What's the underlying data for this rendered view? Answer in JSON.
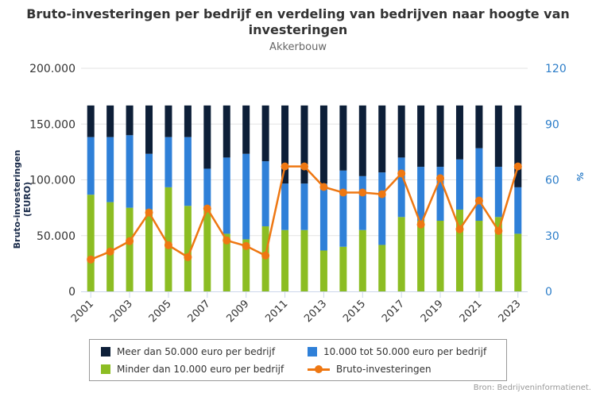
{
  "chart_data": {
    "type": "bar",
    "title": "Bruto-investeringen per bedrijf en verdeling van bedrijven naar hoogte van investeringen",
    "subtitle": "Akkerbouw",
    "ylabel": "Bruto-investeringen (EURO)",
    "y2label": "%",
    "ylim": [
      0,
      200000
    ],
    "y2lim": [
      0,
      120
    ],
    "yticks": [
      "0",
      "50.000",
      "100.000",
      "150.000",
      "200.000"
    ],
    "y2ticks": [
      "0",
      "30",
      "60",
      "90",
      "120"
    ],
    "categories": [
      "2001",
      "2002",
      "2003",
      "2004",
      "2005",
      "2006",
      "2007",
      "2008",
      "2009",
      "2010",
      "2011",
      "2012",
      "2013",
      "2014",
      "2015",
      "2016",
      "2017",
      "2018",
      "2019",
      "2020",
      "2021",
      "2022",
      "2023"
    ],
    "xticks": [
      "2001",
      "2003",
      "2005",
      "2007",
      "2009",
      "2011",
      "2013",
      "2015",
      "2017",
      "2019",
      "2021",
      "2023"
    ],
    "series": [
      {
        "name": "Minder dan 10.000 euro per bedrijf",
        "type": "bar",
        "axis": "right",
        "color": "#8cbd23",
        "values": [
          52,
          48,
          45,
          44,
          56,
          46,
          44,
          31,
          28,
          35,
          33,
          33,
          22,
          24,
          33,
          25,
          40,
          38,
          38,
          44,
          38,
          40,
          31
        ]
      },
      {
        "name": "10.000 tot 50.000 euro per bedrijf",
        "type": "bar",
        "axis": "right",
        "color": "#2f80d8",
        "values": [
          31,
          35,
          39,
          30,
          27,
          37,
          22,
          41,
          46,
          35,
          25,
          25,
          36,
          41,
          29,
          39,
          32,
          29,
          29,
          27,
          39,
          27,
          25
        ]
      },
      {
        "name": "Meer dan 50.000 euro per bedrijf",
        "type": "bar",
        "axis": "right",
        "color": "#0d1f38",
        "values": [
          17,
          17,
          16,
          26,
          17,
          17,
          34,
          28,
          26,
          30,
          42,
          42,
          42,
          35,
          38,
          36,
          28,
          33,
          33,
          29,
          23,
          33,
          44
        ]
      },
      {
        "name": "Bruto-investeringen",
        "type": "line",
        "axis": "left",
        "color": "#ee7712",
        "values": [
          28600,
          35700,
          45000,
          70700,
          41400,
          30700,
          74300,
          45700,
          40700,
          32100,
          112000,
          112000,
          93600,
          88600,
          88600,
          87100,
          105700,
          60000,
          101400,
          55700,
          81400,
          54300,
          112000
        ]
      }
    ],
    "legend_order": [
      2,
      1,
      0,
      3
    ],
    "legend": "bottom",
    "source": "Bron: Bedrijveninformatienet."
  }
}
